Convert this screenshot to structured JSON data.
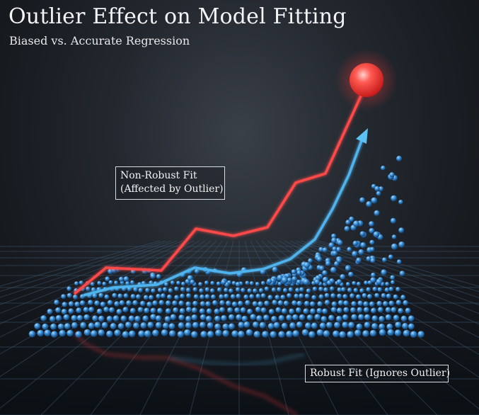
{
  "title": "Outlier Effect on Model Fitting",
  "subtitle": "Biased vs. Accurate Regression",
  "annotations": {
    "non_robust_line1": "Non-Robust Fit",
    "non_robust_line2": "(Affected by Outlier)",
    "robust": "Robust Fit (Ignores Outlier)"
  },
  "colors": {
    "non_robust": "#ff4a4a",
    "robust": "#4fb4ee",
    "points": "#3f8fd4",
    "outlier": "#ff4545",
    "grid": "#3a5670"
  },
  "elements": {
    "outlier_icon": "glowing-red-sphere",
    "data_points_icon": "blue-spheres",
    "robust_arrowhead": "arrow-head"
  }
}
